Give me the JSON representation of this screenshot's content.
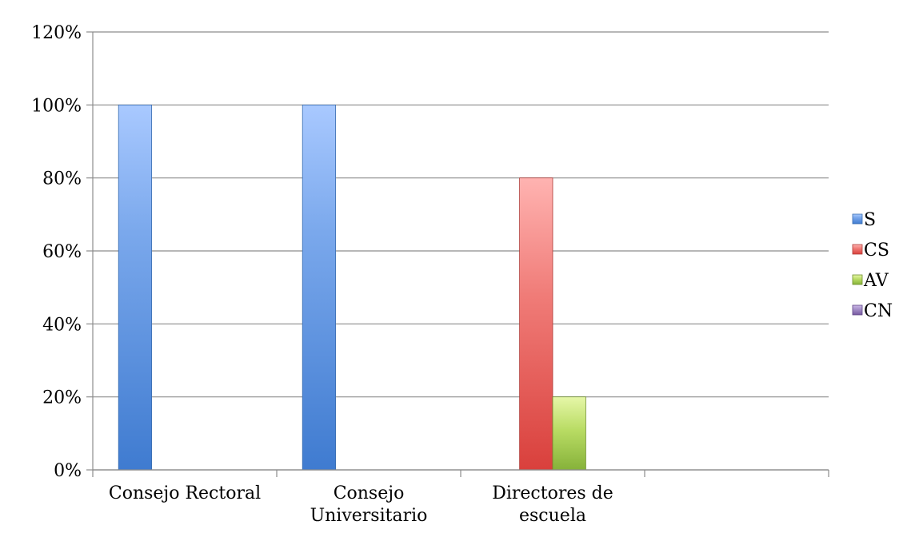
{
  "chart_data": {
    "type": "bar",
    "title": "",
    "xlabel": "",
    "ylabel": "",
    "ylim": [
      0,
      1.2
    ],
    "y_ticks": [
      "0%",
      "20%",
      "40%",
      "60%",
      "80%",
      "100%",
      "120%"
    ],
    "grid": "horizontal",
    "legend_position": "right",
    "categories": [
      [
        "Consejo Rectoral"
      ],
      [
        "Consejo",
        "Universitario"
      ],
      [
        "Directores de",
        "escuela"
      ],
      [
        ""
      ]
    ],
    "series": [
      {
        "name": "S",
        "color": "#4f81bd",
        "values": [
          1.0,
          1.0,
          0,
          0
        ]
      },
      {
        "name": "CS",
        "color": "#c0504d",
        "values": [
          0,
          0,
          0.8,
          0
        ]
      },
      {
        "name": "AV",
        "color": "#9bbb59",
        "values": [
          0,
          0,
          0.2,
          0
        ]
      },
      {
        "name": "CN",
        "color": "#8064a2",
        "values": [
          0,
          0,
          0,
          0
        ]
      }
    ]
  }
}
